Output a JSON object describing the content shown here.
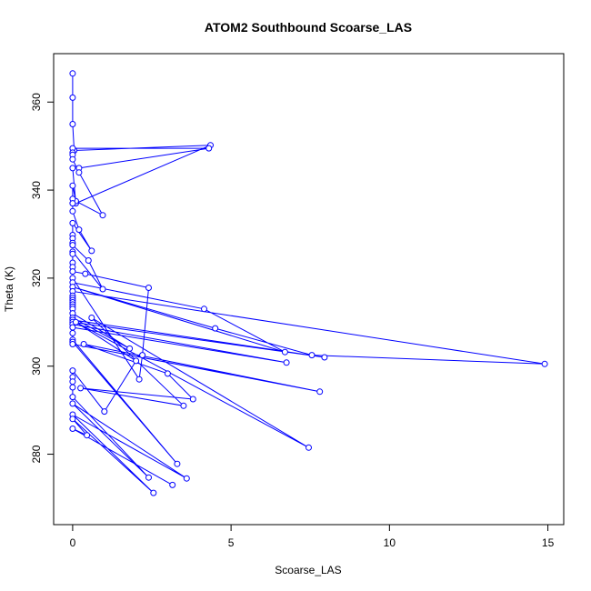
{
  "chart_data": {
    "type": "line",
    "title": "ATOM2 Southbound Scoarse_LAS",
    "xlabel": "Scoarse_LAS",
    "ylabel": "Theta (K)",
    "xlim": [
      -0.6,
      15.5
    ],
    "ylim": [
      264,
      371
    ],
    "xticks": [
      0,
      5,
      10,
      15
    ],
    "yticks": [
      280,
      300,
      320,
      340,
      360
    ],
    "grid": false,
    "legend": "none",
    "color": "#0000ff",
    "markers": "open-circle",
    "series": [
      {
        "points": [
          [
            0,
            366.5
          ],
          [
            0,
            361
          ],
          [
            0,
            355
          ],
          [
            0.05,
            349
          ],
          [
            4.35,
            350.2
          ],
          [
            0.1,
            337
          ],
          [
            0.0,
            345
          ],
          [
            0.2,
            345
          ],
          [
            4.3,
            349.5
          ],
          [
            0.0,
            349.5
          ],
          [
            0.0,
            348.5
          ],
          [
            0.0,
            348
          ],
          [
            0.0,
            347
          ],
          [
            0.2,
            344
          ],
          [
            0.95,
            334.3
          ],
          [
            0.1,
            337.5
          ],
          [
            0.0,
            341
          ],
          [
            0.0,
            338
          ],
          [
            0.0,
            337
          ],
          [
            0.0,
            335.2
          ],
          [
            0.2,
            331
          ],
          [
            0.6,
            326.2
          ],
          [
            0.0,
            332.5
          ],
          [
            0.0,
            329.8
          ],
          [
            0.0,
            329
          ],
          [
            0.0,
            328
          ],
          [
            0.0,
            327.5
          ],
          [
            0.5,
            324
          ],
          [
            0.95,
            317.5
          ],
          [
            0.0,
            326
          ],
          [
            0.0,
            325.5
          ],
          [
            0.0,
            323.5
          ],
          [
            0.0,
            322.5
          ],
          [
            0.0,
            321.5
          ],
          [
            0.4,
            321
          ],
          [
            2.4,
            317.8
          ],
          [
            2.2,
            302.5
          ],
          [
            2.1,
            297
          ],
          [
            0.0,
            320
          ],
          [
            0.0,
            319
          ],
          [
            4.15,
            313
          ],
          [
            6.7,
            303.2
          ],
          [
            0.0,
            318
          ],
          [
            4.5,
            308.6
          ],
          [
            7.55,
            302.5
          ],
          [
            14.9,
            300.5
          ],
          [
            0.0,
            317
          ],
          [
            0.0,
            316
          ],
          [
            0.0,
            315.5
          ],
          [
            0.0,
            315
          ],
          [
            0.0,
            314.5
          ],
          [
            0.0,
            314
          ],
          [
            0.0,
            313.5
          ],
          [
            0.0,
            313
          ],
          [
            0.0,
            312
          ],
          [
            1.8,
            304
          ],
          [
            0.0,
            311
          ],
          [
            0.0,
            310.5
          ],
          [
            7.95,
            302
          ],
          [
            0.0,
            310
          ],
          [
            0.0,
            309.5
          ],
          [
            6.75,
            300.8
          ],
          [
            0.0,
            308.8
          ],
          [
            0.0,
            307.5
          ],
          [
            0.0,
            306
          ],
          [
            3.3,
            277.8
          ],
          [
            0.0,
            305.5
          ],
          [
            0.0,
            305
          ],
          [
            7.8,
            294.2
          ],
          [
            0.35,
            305
          ],
          [
            3.0,
            298.3
          ],
          [
            3.8,
            292.5
          ],
          [
            0.25,
            295
          ],
          [
            3.5,
            291
          ],
          [
            0.6,
            311
          ],
          [
            7.45,
            281.5
          ],
          [
            0.1,
            310
          ],
          [
            2.0,
            301.2
          ],
          [
            1.0,
            289.7
          ],
          [
            0.0,
            299
          ],
          [
            0.0,
            297.5
          ],
          [
            0.0,
            296.5
          ],
          [
            0.0,
            295.2
          ],
          [
            0.0,
            293
          ],
          [
            2.4,
            274.7
          ],
          [
            0.0,
            291.5
          ],
          [
            3.6,
            274.5
          ],
          [
            0.0,
            289
          ],
          [
            2.55,
            271.2
          ],
          [
            0.0,
            288
          ],
          [
            0.45,
            284.3
          ],
          [
            0.0,
            285.8
          ],
          [
            3.15,
            273
          ]
        ]
      }
    ]
  }
}
